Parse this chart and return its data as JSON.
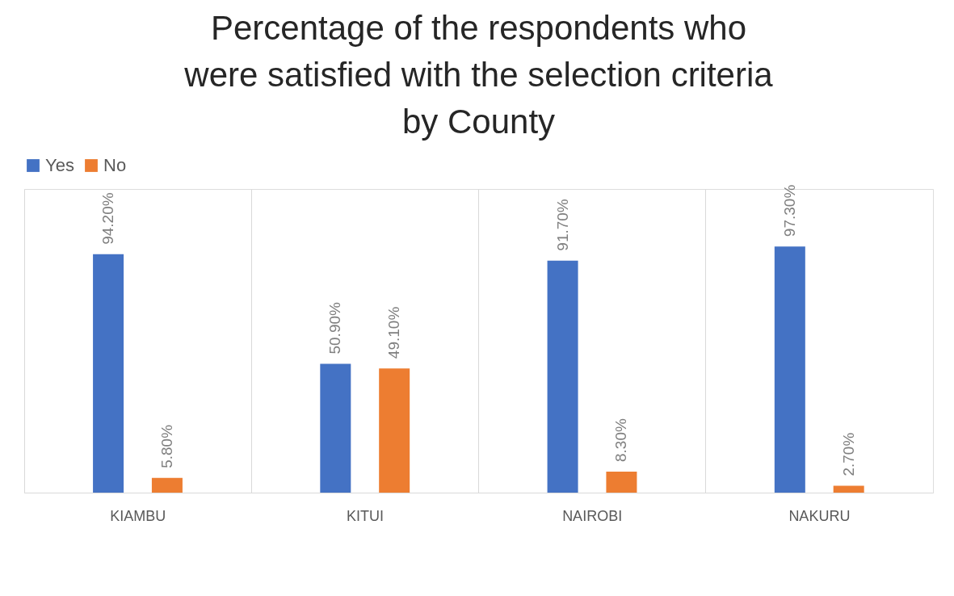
{
  "chart_data": {
    "type": "bar",
    "title": [
      "Percentage of the respondents who",
      "were satisfied with the selection criteria",
      "by County"
    ],
    "categories": [
      "KIAMBU",
      "KITUI",
      "NAIROBI",
      "NAKURU"
    ],
    "series": [
      {
        "name": "Yes",
        "color": "#4472c4",
        "values": [
          94.2,
          50.9,
          91.7,
          97.3
        ],
        "value_labels": [
          "94.20%",
          "50.90%",
          "91.70%",
          "97.30%"
        ]
      },
      {
        "name": "No",
        "color": "#ed7d31",
        "values": [
          5.8,
          49.1,
          8.3,
          2.7
        ],
        "value_labels": [
          "5.80%",
          "49.10%",
          "8.30%",
          "2.70%"
        ]
      }
    ],
    "ylim": [
      0,
      120
    ],
    "tick_labels": "x",
    "grid": "x",
    "legend": "top"
  }
}
